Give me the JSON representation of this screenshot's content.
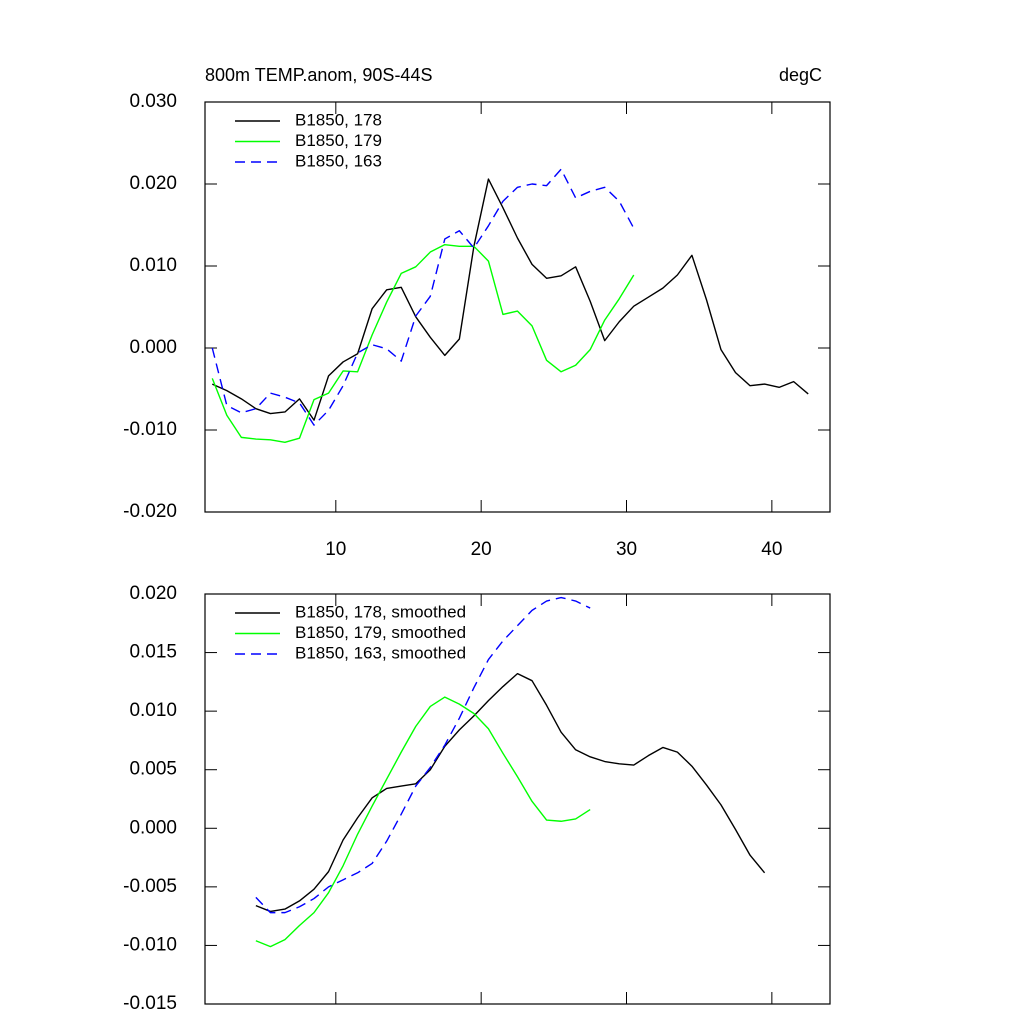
{
  "chart_data": [
    {
      "type": "line",
      "title": "800m TEMP.anom, 90S-44S",
      "right_title": "degC",
      "xlim": [
        1,
        44
      ],
      "xticks": [
        10,
        20,
        30,
        40
      ],
      "xtick_labels": true,
      "ylim": [
        -0.02,
        0.03
      ],
      "yticks": [
        {
          "value": -0.02,
          "label": "-0.020"
        },
        {
          "value": -0.01,
          "label": "-0.010"
        },
        {
          "value": 0,
          "label": "0.000"
        },
        {
          "value": 0.01,
          "label": "0.010"
        },
        {
          "value": 0.02,
          "label": "0.020"
        },
        {
          "value": 0.03,
          "label": "0.030"
        }
      ],
      "legend": "upper left",
      "series": [
        {
          "name": "B1850, 178",
          "color": "#000000",
          "dashed": false,
          "x": [
            1.5,
            2.5,
            3.5,
            4.5,
            5.5,
            6.5,
            7.5,
            8.5,
            9.5,
            10.5,
            11.5,
            12.5,
            13.5,
            14.5,
            15.5,
            16.5,
            17.5,
            18.5,
            19.5,
            20.5,
            21.5,
            22.5,
            23.5,
            24.5,
            25.5,
            26.5,
            27.5,
            28.5,
            29.5,
            30.5,
            31.5,
            32.5,
            33.5,
            34.5,
            35.5,
            36.5,
            37.5,
            38.5,
            39.5,
            40.5,
            41.5,
            42.5
          ],
          "values": [
            -0.0044,
            -0.0052,
            -0.0062,
            -0.0074,
            -0.008,
            -0.0078,
            -0.0062,
            -0.0088,
            -0.0034,
            -0.0017,
            -0.0007,
            0.0048,
            0.0071,
            0.0074,
            0.0038,
            0.0013,
            -0.0009,
            0.0011,
            0.0124,
            0.0206,
            0.0171,
            0.0134,
            0.0102,
            0.0085,
            0.0088,
            0.0099,
            0.0057,
            0.0009,
            0.0032,
            0.0051,
            0.0062,
            0.0073,
            0.0089,
            0.0113,
            0.0059,
            -0.0002,
            -0.003,
            -0.0046,
            -0.0044,
            -0.0048,
            -0.0041,
            -0.0056
          ]
        },
        {
          "name": "B1850, 179",
          "color": "#00ff00",
          "dashed": false,
          "x": [
            1.5,
            2.5,
            3.5,
            4.5,
            5.5,
            6.5,
            7.5,
            8.5,
            9.5,
            10.5,
            11.5,
            12.5,
            13.5,
            14.5,
            15.5,
            16.5,
            17.5,
            18.5,
            19.5,
            20.5,
            21.5,
            22.5,
            23.5,
            24.5,
            25.5,
            26.5,
            27.5,
            28.5,
            29.5,
            30.5
          ],
          "values": [
            -0.0037,
            -0.0082,
            -0.0109,
            -0.0111,
            -0.0112,
            -0.0115,
            -0.011,
            -0.0063,
            -0.0055,
            -0.0028,
            -0.0029,
            0.0016,
            0.0056,
            0.0091,
            0.0099,
            0.0117,
            0.0126,
            0.0124,
            0.0124,
            0.0106,
            0.0041,
            0.0045,
            0.0027,
            -0.0015,
            -0.0029,
            -0.0021,
            -0.0002,
            0.0034,
            0.006,
            0.0089
          ]
        },
        {
          "name": "B1850, 163",
          "color": "#0000ff",
          "dashed": true,
          "x": [
            1.5,
            2.5,
            3.5,
            4.5,
            5.5,
            6.5,
            7.5,
            8.5,
            9.5,
            10.5,
            11.5,
            12.5,
            13.5,
            14.5,
            15.5,
            16.5,
            17.5,
            18.5,
            19.5,
            20.5,
            21.5,
            22.5,
            23.5,
            24.5,
            25.5,
            26.5,
            27.5,
            28.5,
            29.5,
            30.5
          ],
          "values": [
            0.0,
            -0.007,
            -0.0079,
            -0.0074,
            -0.0055,
            -0.006,
            -0.0067,
            -0.0094,
            -0.0076,
            -0.0046,
            -0.0006,
            0.0004,
            -0.0001,
            -0.0016,
            0.0039,
            0.0063,
            0.0133,
            0.0143,
            0.0122,
            0.0149,
            0.0179,
            0.0196,
            0.02,
            0.0198,
            0.0218,
            0.0183,
            0.0191,
            0.0196,
            0.0179,
            0.0146
          ]
        }
      ]
    },
    {
      "type": "line",
      "xlim": [
        1,
        44
      ],
      "xticks": [
        10,
        20,
        30,
        40
      ],
      "xtick_labels": false,
      "ylim": [
        -0.015,
        0.02
      ],
      "yticks": [
        {
          "value": -0.015,
          "label": "-0.015"
        },
        {
          "value": -0.01,
          "label": "-0.010"
        },
        {
          "value": -0.005,
          "label": "-0.005"
        },
        {
          "value": 0,
          "label": "0.000"
        },
        {
          "value": 0.005,
          "label": "0.005"
        },
        {
          "value": 0.01,
          "label": "0.010"
        },
        {
          "value": 0.015,
          "label": "0.015"
        },
        {
          "value": 0.02,
          "label": "0.020"
        }
      ],
      "legend": "upper left",
      "series": [
        {
          "name": "B1850, 178, smoothed",
          "color": "#000000",
          "dashed": false,
          "x": [
            4.5,
            5.5,
            6.5,
            7.5,
            8.5,
            9.5,
            10.5,
            11.5,
            12.5,
            13.5,
            14.5,
            15.5,
            16.5,
            17.5,
            18.5,
            19.5,
            20.5,
            21.5,
            22.5,
            23.5,
            24.5,
            25.5,
            26.5,
            27.5,
            28.5,
            29.5,
            30.5,
            31.5,
            32.5,
            33.5,
            34.5,
            35.5,
            36.5,
            37.5,
            38.5,
            39.5
          ],
          "values": [
            -0.0066,
            -0.0071,
            -0.0069,
            -0.0062,
            -0.0052,
            -0.0037,
            -0.001,
            0.0009,
            0.0026,
            0.0034,
            0.0036,
            0.0038,
            0.005,
            0.007,
            0.0084,
            0.0096,
            0.0109,
            0.0121,
            0.0132,
            0.0126,
            0.0105,
            0.0082,
            0.0067,
            0.0061,
            0.0057,
            0.0055,
            0.0054,
            0.0062,
            0.0069,
            0.0065,
            0.0053,
            0.0037,
            0.002,
            -0.0001,
            -0.0023,
            -0.0038
          ]
        },
        {
          "name": "B1850, 179, smoothed",
          "color": "#00ff00",
          "dashed": false,
          "x": [
            4.5,
            5.5,
            6.5,
            7.5,
            8.5,
            9.5,
            10.5,
            11.5,
            12.5,
            13.5,
            14.5,
            15.5,
            16.5,
            17.5,
            18.5,
            19.5,
            20.5,
            21.5,
            22.5,
            23.5,
            24.5,
            25.5,
            26.5,
            27.5
          ],
          "values": [
            -0.0096,
            -0.0101,
            -0.0095,
            -0.0083,
            -0.0072,
            -0.0055,
            -0.0032,
            -0.0005,
            0.0019,
            0.0042,
            0.0065,
            0.0087,
            0.0104,
            0.0112,
            0.0106,
            0.0098,
            0.0085,
            0.0064,
            0.0044,
            0.0023,
            0.0007,
            0.0006,
            0.0008,
            0.0016
          ]
        },
        {
          "name": "B1850, 163, smoothed",
          "color": "#0000ff",
          "dashed": true,
          "x": [
            4.5,
            5.5,
            6.5,
            7.5,
            8.5,
            9.5,
            10.5,
            11.5,
            12.5,
            13.5,
            14.5,
            15.5,
            16.5,
            17.5,
            18.5,
            19.5,
            20.5,
            21.5,
            22.5,
            23.5,
            24.5,
            25.5,
            26.5,
            27.5
          ],
          "values": [
            -0.0059,
            -0.0072,
            -0.0072,
            -0.0067,
            -0.006,
            -0.005,
            -0.0044,
            -0.0038,
            -0.003,
            -0.0011,
            0.0012,
            0.0036,
            0.0052,
            0.0071,
            0.0094,
            0.012,
            0.0144,
            0.016,
            0.0173,
            0.0186,
            0.0194,
            0.0197,
            0.0194,
            0.0188
          ]
        }
      ]
    }
  ]
}
